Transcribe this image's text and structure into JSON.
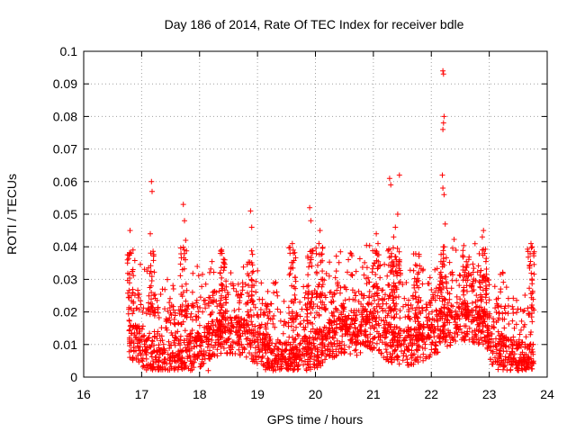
{
  "chart_data": {
    "type": "scatter",
    "title": "Day 186 of 2014, Rate Of TEC Index for receiver bdle",
    "xlabel": "GPS time / hours",
    "ylabel": "ROTI / TECUs",
    "xlim": [
      16,
      24
    ],
    "ylim": [
      0,
      0.1
    ],
    "x_ticks": [
      "16",
      "17",
      "18",
      "19",
      "20",
      "21",
      "22",
      "23",
      "24"
    ],
    "y_ticks": [
      "0",
      "0.01",
      "0.02",
      "0.03",
      "0.04",
      "0.05",
      "0.06",
      "0.07",
      "0.08",
      "0.09",
      "0.1"
    ],
    "grid": true,
    "marker": "+",
    "series": [
      {
        "name": "ROTI",
        "color": "#ff0000",
        "x_range": [
          16.78,
          23.77
        ],
        "typical_y_range": [
          0.004,
          0.03
        ],
        "highlights": [
          {
            "x": 16.8,
            "y": 0.045
          },
          {
            "x": 16.82,
            "y": 0.038
          },
          {
            "x": 16.85,
            "y": 0.033
          },
          {
            "x": 17.17,
            "y": 0.06
          },
          {
            "x": 17.18,
            "y": 0.057
          },
          {
            "x": 17.15,
            "y": 0.044
          },
          {
            "x": 17.72,
            "y": 0.053
          },
          {
            "x": 17.74,
            "y": 0.048
          },
          {
            "x": 17.76,
            "y": 0.042
          },
          {
            "x": 18.38,
            "y": 0.039
          },
          {
            "x": 18.42,
            "y": 0.035
          },
          {
            "x": 18.88,
            "y": 0.051
          },
          {
            "x": 18.9,
            "y": 0.046
          },
          {
            "x": 19.6,
            "y": 0.041
          },
          {
            "x": 19.62,
            "y": 0.038
          },
          {
            "x": 19.9,
            "y": 0.052
          },
          {
            "x": 19.92,
            "y": 0.048
          },
          {
            "x": 20.08,
            "y": 0.045
          },
          {
            "x": 20.06,
            "y": 0.041
          },
          {
            "x": 21.05,
            "y": 0.044
          },
          {
            "x": 21.08,
            "y": 0.041
          },
          {
            "x": 21.28,
            "y": 0.061
          },
          {
            "x": 21.3,
            "y": 0.059
          },
          {
            "x": 21.45,
            "y": 0.062
          },
          {
            "x": 21.42,
            "y": 0.05
          },
          {
            "x": 21.38,
            "y": 0.046
          },
          {
            "x": 21.35,
            "y": 0.043
          },
          {
            "x": 22.2,
            "y": 0.094
          },
          {
            "x": 22.21,
            "y": 0.093
          },
          {
            "x": 22.22,
            "y": 0.08
          },
          {
            "x": 22.21,
            "y": 0.078
          },
          {
            "x": 22.2,
            "y": 0.076
          },
          {
            "x": 22.19,
            "y": 0.062
          },
          {
            "x": 22.2,
            "y": 0.058
          },
          {
            "x": 22.22,
            "y": 0.056
          },
          {
            "x": 22.24,
            "y": 0.047
          },
          {
            "x": 22.9,
            "y": 0.045
          },
          {
            "x": 22.88,
            "y": 0.043
          },
          {
            "x": 23.72,
            "y": 0.041
          },
          {
            "x": 23.74,
            "y": 0.04
          },
          {
            "x": 23.05,
            "y": 0.004
          },
          {
            "x": 18.15,
            "y": 0.002
          },
          {
            "x": 17.9,
            "y": 0.003
          }
        ]
      }
    ]
  }
}
